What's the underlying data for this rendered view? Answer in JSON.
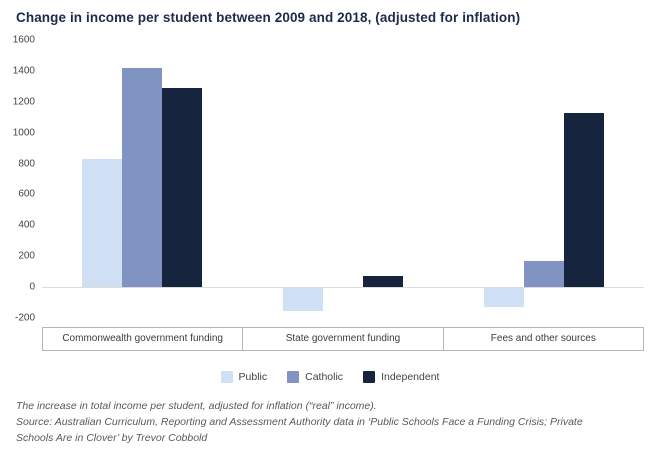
{
  "chart_data": {
    "type": "bar",
    "title": "Change in income per student between 2009 and 2018, (adjusted for inflation)",
    "categories": [
      "Commonwealth government funding",
      "State government funding",
      "Fees and other sources"
    ],
    "series": [
      {
        "name": "Public",
        "color": "#cfe0f4",
        "values": [
          830,
          -150,
          -120
        ]
      },
      {
        "name": "Catholic",
        "color": "#8093c2",
        "values": [
          1420,
          0,
          170
        ]
      },
      {
        "name": "Independent",
        "color": "#17243e",
        "values": [
          1290,
          70,
          1130
        ]
      }
    ],
    "ylim": [
      -200,
      1600
    ],
    "yticks": [
      1600,
      1400,
      1200,
      1000,
      800,
      600,
      400,
      200,
      0,
      -200
    ],
    "xlabel": "",
    "ylabel": "",
    "grid": false,
    "legend_position": "bottom"
  },
  "notes": {
    "footnote": "The increase in total income per student, adjusted for inflation (“real” income).",
    "source": "Source:  Australian Curriculum, Reporting and Assessment Authority data in ‘Public Schools Face a Funding Crisis; Private Schools Are in Clover’ by Trevor Cobbold"
  },
  "colors": {
    "title": "#1e2a4a",
    "axis_text": "#444444",
    "border": "#b3b7bc",
    "note_text": "#595959"
  }
}
